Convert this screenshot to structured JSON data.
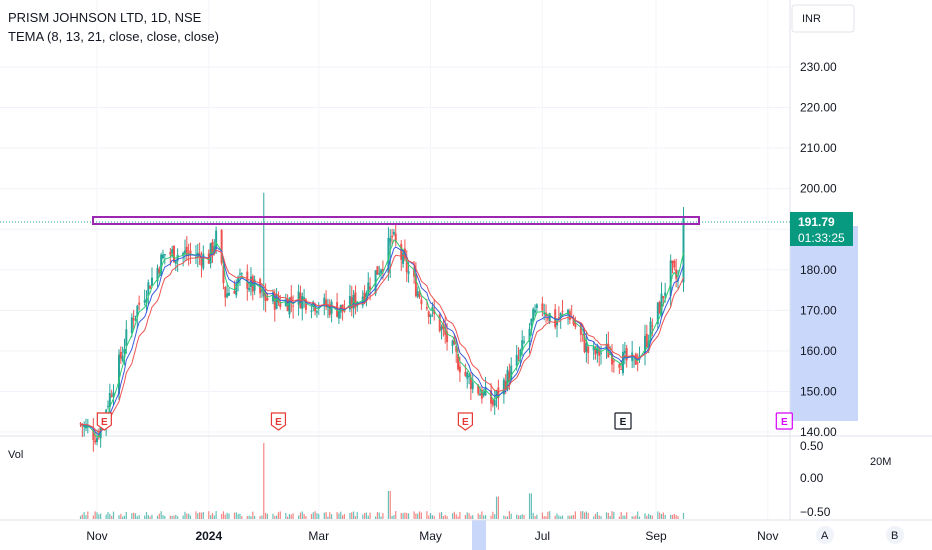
{
  "header": {
    "symbol_line": "PRISM JOHNSON LTD, 1D, NSE",
    "indicator_line": "TEMA (8, 13, 21, close, close, close)"
  },
  "currency_button": "INR",
  "price_label": {
    "price": "191.79",
    "timer": "01:33:25"
  },
  "volume_label": "Vol",
  "volume_scale_extra": "20M",
  "bottom_buttons": [
    "A",
    "B"
  ],
  "colors": {
    "up": "#26a69a",
    "down": "#ef5350",
    "tema_fast": "#2ecc71",
    "tema_mid": "#3b5bdb",
    "tema_slow": "#ef5350",
    "resistance": "#9c27b0",
    "label_bg": "#089981",
    "range_bg": "#c9d7fb"
  },
  "chart_data": {
    "type": "candlestick",
    "interval": "1D",
    "price_axis": {
      "ticks": [
        "230.00",
        "220.00",
        "210.00",
        "200.00",
        "190.00",
        "180.00",
        "170.00",
        "160.00",
        "150.00",
        "140.00"
      ],
      "range": [
        140,
        232
      ]
    },
    "volume_axis": {
      "ticks": [
        "0.50",
        "0.00",
        "−0.50"
      ]
    },
    "time_axis": {
      "labels": [
        "Nov",
        "2024",
        "Mar",
        "May",
        "Jul",
        "Sep",
        "Nov"
      ],
      "bold": "2024"
    },
    "resistance_level": 192.2,
    "last_price": 191.79,
    "price_keypoints": [
      [
        "2023-10-23",
        142
      ],
      [
        "2023-11-01",
        139
      ],
      [
        "2023-11-10",
        152
      ],
      [
        "2023-11-20",
        168
      ],
      [
        "2023-11-30",
        177
      ],
      [
        "2023-12-08",
        184
      ],
      [
        "2023-12-18",
        184
      ],
      [
        "2024-01-01",
        183
      ],
      [
        "2024-01-05",
        188
      ],
      [
        "2024-01-10",
        174
      ],
      [
        "2024-01-20",
        178
      ],
      [
        "2024-01-31",
        173
      ],
      [
        "2024-02-10",
        172
      ],
      [
        "2024-02-20",
        173
      ],
      [
        "2024-03-05",
        171
      ],
      [
        "2024-03-15",
        170
      ],
      [
        "2024-03-25",
        174
      ],
      [
        "2024-04-05",
        182
      ],
      [
        "2024-04-10",
        188
      ],
      [
        "2024-04-16",
        182
      ],
      [
        "2024-04-25",
        174
      ],
      [
        "2024-05-05",
        167
      ],
      [
        "2024-05-12",
        161
      ],
      [
        "2024-05-20",
        154
      ],
      [
        "2024-05-28",
        150
      ],
      [
        "2024-06-04",
        147
      ],
      [
        "2024-06-10",
        152
      ],
      [
        "2024-06-18",
        158
      ],
      [
        "2024-06-26",
        168
      ],
      [
        "2024-07-01",
        171
      ],
      [
        "2024-07-08",
        167
      ],
      [
        "2024-07-15",
        170
      ],
      [
        "2024-07-20",
        165
      ],
      [
        "2024-07-27",
        159
      ],
      [
        "2024-08-05",
        160
      ],
      [
        "2024-08-12",
        158
      ],
      [
        "2024-08-20",
        157
      ],
      [
        "2024-08-27",
        163
      ],
      [
        "2024-09-03",
        171
      ],
      [
        "2024-09-09",
        180
      ],
      [
        "2024-09-13",
        177
      ],
      [
        "2024-09-16",
        192
      ]
    ],
    "earnings_markers": [
      {
        "date": "2023-11-05",
        "label": "E",
        "style": "red"
      },
      {
        "date": "2024-02-08",
        "label": "E",
        "style": "red"
      },
      {
        "date": "2024-05-20",
        "label": "E",
        "style": "red"
      },
      {
        "date": "2024-08-14",
        "label": "E",
        "style": "dark"
      },
      {
        "date": "2024-11-10",
        "label": "E",
        "style": "pink"
      }
    ],
    "volume_spikes": [
      {
        "date": "2023-10-28",
        "level": 0.55
      },
      {
        "date": "2024-01-31",
        "level": 0.95
      },
      {
        "date": "2024-04-09",
        "level": 0.35
      },
      {
        "date": "2024-06-07",
        "level": 0.28
      },
      {
        "date": "2024-06-25",
        "level": 0.32
      },
      {
        "date": "2024-09-14",
        "level": 0.62
      }
    ]
  }
}
